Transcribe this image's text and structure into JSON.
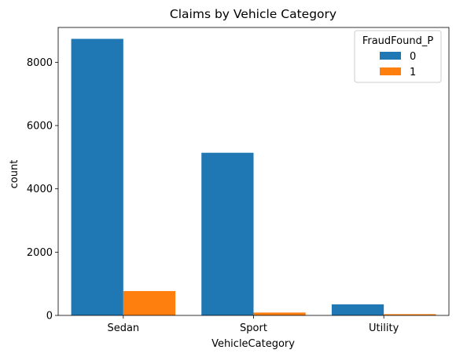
{
  "chart_data": {
    "type": "bar",
    "title": "Claims by Vehicle Category",
    "xlabel": "VehicleCategory",
    "ylabel": "count",
    "categories": [
      "Sedan",
      "Sport",
      "Utility"
    ],
    "series": [
      {
        "name": "0",
        "values": [
          8740,
          5140,
          350
        ],
        "color": "#1f77b4"
      },
      {
        "name": "1",
        "values": [
          770,
          90,
          40
        ],
        "color": "#ff7f0e"
      }
    ],
    "ylim": [
      0,
      9100
    ],
    "yticks": [
      0,
      2000,
      4000,
      6000,
      8000
    ],
    "ytick_labels": [
      "0",
      "2000",
      "4000",
      "6000",
      "8000"
    ],
    "legend": {
      "title": "FraudFound_P",
      "placement": "top-right"
    },
    "grid": false
  }
}
